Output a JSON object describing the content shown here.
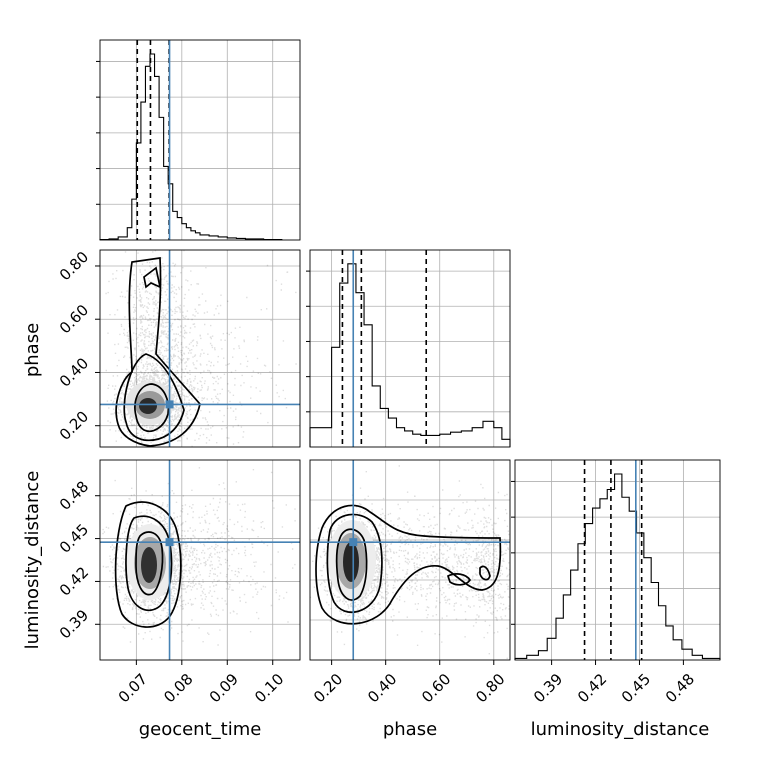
{
  "figure": {
    "parameters": [
      "geocent_time",
      "phase",
      "luminosity_distance"
    ],
    "truth_color": "#4682b4"
  },
  "chart_data": [
    {
      "type": "histogram",
      "parameter": "geocent_time",
      "xlim": [
        0.062,
        0.106
      ],
      "xticks": [
        0.07,
        0.08,
        0.09,
        0.1
      ],
      "quantiles": [
        0.0702,
        0.0731,
        0.0772
      ],
      "truth": 0.0773,
      "bins": [
        0.062,
        0.064,
        0.066,
        0.068,
        0.069,
        0.07,
        0.071,
        0.072,
        0.073,
        0.074,
        0.075,
        0.076,
        0.077,
        0.078,
        0.079,
        0.08,
        0.081,
        0.082,
        0.083,
        0.084,
        0.086,
        0.088,
        0.09,
        0.092,
        0.094,
        0.096,
        0.098,
        0.1,
        0.102
      ],
      "counts": [
        0.5,
        1,
        3,
        12,
        40,
        95,
        135,
        170,
        182,
        160,
        120,
        72,
        55,
        28,
        22,
        16,
        12,
        9,
        7,
        5,
        4,
        3,
        2,
        1.5,
        1,
        1,
        0.5,
        0.5
      ]
    },
    {
      "type": "histogram",
      "parameter": "phase",
      "xlim": [
        0.12,
        0.86
      ],
      "xticks": [
        0.2,
        0.4,
        0.6,
        0.8
      ],
      "quantiles": [
        0.24,
        0.31,
        0.55
      ],
      "truth": 0.28,
      "bins": [
        0.12,
        0.16,
        0.2,
        0.23,
        0.26,
        0.29,
        0.32,
        0.35,
        0.38,
        0.41,
        0.44,
        0.47,
        0.5,
        0.53,
        0.56,
        0.6,
        0.64,
        0.68,
        0.72,
        0.76,
        0.8,
        0.83,
        0.86
      ],
      "counts": [
        30,
        30,
        155,
        255,
        285,
        240,
        190,
        95,
        60,
        45,
        30,
        25,
        20,
        18,
        18,
        20,
        23,
        25,
        30,
        40,
        30,
        12
      ]
    },
    {
      "type": "histogram",
      "parameter": "luminosity_distance",
      "xlim": [
        0.365,
        0.505
      ],
      "xticks": [
        0.39,
        0.42,
        0.45,
        0.48
      ],
      "quantiles": [
        0.4125,
        0.4305,
        0.4515
      ],
      "truth": 0.4475,
      "bins": [
        0.365,
        0.373,
        0.381,
        0.387,
        0.393,
        0.398,
        0.403,
        0.408,
        0.413,
        0.418,
        0.423,
        0.428,
        0.433,
        0.438,
        0.443,
        0.448,
        0.453,
        0.458,
        0.463,
        0.468,
        0.473,
        0.479,
        0.486,
        0.493,
        0.505
      ],
      "counts": [
        1,
        3,
        6,
        14,
        27,
        42,
        58,
        75,
        88,
        98,
        104,
        110,
        120,
        105,
        96,
        82,
        66,
        50,
        35,
        22,
        13,
        7,
        3,
        1
      ]
    },
    {
      "type": "scatter-contour",
      "x_parameter": "geocent_time",
      "y_parameter": "phase",
      "xlim": [
        0.062,
        0.106
      ],
      "ylim": [
        0.12,
        0.86
      ],
      "yticks": [
        0.2,
        0.4,
        0.6,
        0.8
      ],
      "truth": [
        0.0773,
        0.28
      ]
    },
    {
      "type": "scatter-contour",
      "x_parameter": "geocent_time",
      "y_parameter": "luminosity_distance",
      "xlim": [
        0.062,
        0.106
      ],
      "ylim": [
        0.365,
        0.505
      ],
      "xticks": [
        0.07,
        0.08,
        0.09,
        0.1
      ],
      "yticks": [
        0.39,
        0.42,
        0.45,
        0.48
      ],
      "truth": [
        0.0773,
        0.4475
      ]
    },
    {
      "type": "scatter-contour",
      "x_parameter": "phase",
      "y_parameter": "luminosity_distance",
      "xlim": [
        0.12,
        0.86
      ],
      "ylim": [
        0.365,
        0.505
      ],
      "xticks": [
        0.2,
        0.4,
        0.6,
        0.8
      ],
      "truth": [
        0.28,
        0.4475
      ]
    }
  ]
}
